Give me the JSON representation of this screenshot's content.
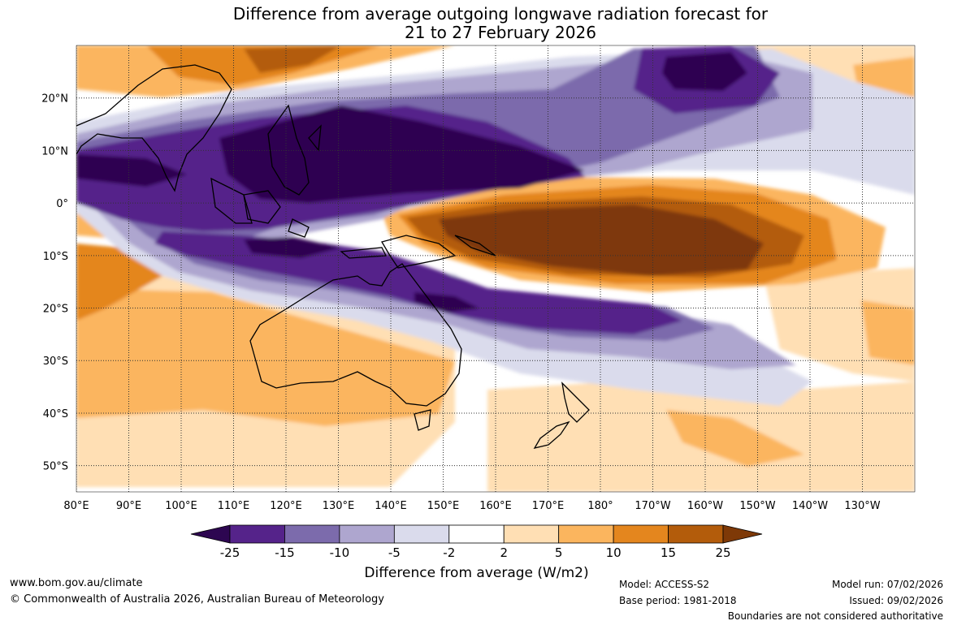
{
  "title": {
    "line1": "Difference from average outgoing longwave radiation forecast for",
    "line2": "21 to 27 February 2026"
  },
  "map": {
    "lat_labels": [
      "20°N",
      "10°N",
      "0°",
      "10°S",
      "20°S",
      "30°S",
      "40°S",
      "50°S"
    ],
    "lat_values": [
      20,
      10,
      0,
      -10,
      -20,
      -30,
      -40,
      -50
    ],
    "lon_labels": [
      "80°E",
      "90°E",
      "100°E",
      "110°E",
      "120°E",
      "130°E",
      "140°E",
      "150°E",
      "160°E",
      "170°E",
      "180°",
      "170°W",
      "160°W",
      "150°W",
      "140°W",
      "130°W"
    ],
    "lon_values": [
      80,
      90,
      100,
      110,
      120,
      130,
      140,
      150,
      160,
      170,
      180,
      190,
      200,
      210,
      220,
      230
    ],
    "lat_range": [
      -55,
      30
    ],
    "lon_range": [
      80,
      240
    ]
  },
  "colorbar": {
    "ticks": [
      "-25",
      "-15",
      "-10",
      "-5",
      "-2",
      "2",
      "5",
      "10",
      "15",
      "25"
    ],
    "colors": [
      "#2d0651",
      "#55238a",
      "#7c6bac",
      "#aea6cf",
      "#dadbec",
      "#ffffff",
      "#ffdfb4",
      "#fbb55e",
      "#e4861e",
      "#b35c0b",
      "#7e3907"
    ],
    "units_label": "Difference from average (W/m2)"
  },
  "footer": {
    "website": "www.bom.gov.au/climate",
    "copyright": "© Commonwealth of Australia 2026, Australian Bureau of Meteorology",
    "model": "Model: ACCESS-S2",
    "base_period": "Base period: 1981-2018",
    "model_run": "Model run: 07/02/2026",
    "issued": "Issued: 09/02/2026",
    "disclaimer": "Boundaries are not considered authoritative"
  }
}
